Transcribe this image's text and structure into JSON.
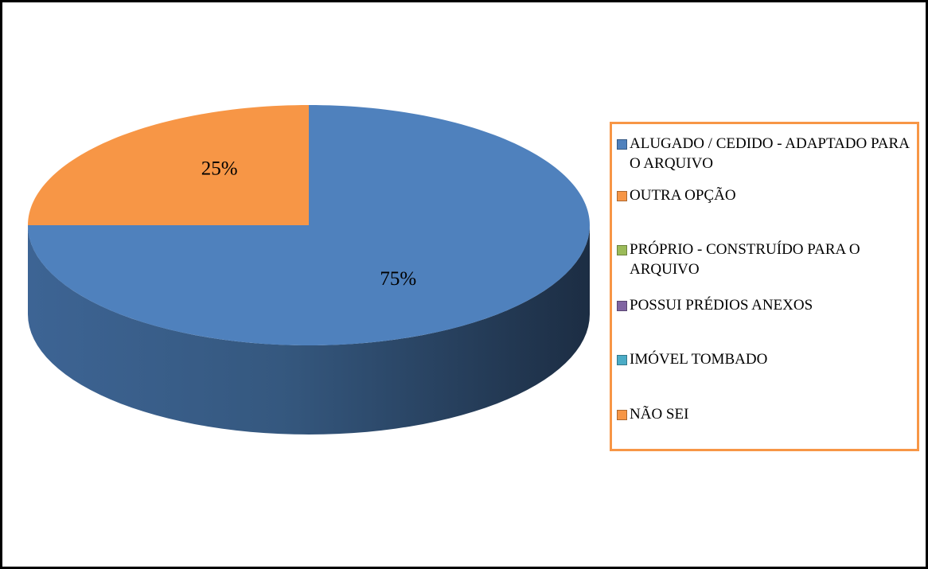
{
  "chart_data": {
    "type": "pie",
    "categories": [
      "ALUGADO / CEDIDO - ADAPTADO PARA O ARQUIVO",
      "OUTRA OPÇÃO",
      "PRÓPRIO - CONSTRUÍDO PARA O ARQUIVO",
      "POSSUI PRÉDIOS ANEXOS",
      "IMÓVEL TOMBADO",
      "NÃO SEI"
    ],
    "values": [
      75,
      25,
      0,
      0,
      0,
      0
    ],
    "value_labels": [
      "75%",
      "25%",
      null,
      null,
      null,
      null
    ],
    "colors": [
      "#4f81bd",
      "#f79646",
      "#9bbb59",
      "#8064a2",
      "#4bacc6",
      "#f79646"
    ],
    "legend": "right"
  }
}
